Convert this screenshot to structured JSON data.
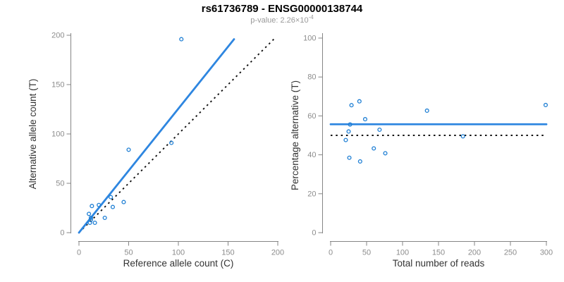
{
  "header": {
    "title": "rs61736789 - ENSG00000138744",
    "subtitle_base": "p-value: 2.26×10",
    "subtitle_exponent": "-4"
  },
  "colors": {
    "point": "#1f7fd4",
    "fit_line": "#2e86e0",
    "reference_line": "#111111",
    "axis": "#858585",
    "tick_label": "#8c8c8c",
    "axis_title": "#333333",
    "title": "#000000",
    "subtitle": "#999999"
  },
  "chart_data": [
    {
      "id": "allele-counts",
      "type": "scatter",
      "xlabel": "Reference allele count (C)",
      "ylabel": "Alternative allele count (T)",
      "xlim": [
        0,
        200
      ],
      "ylim": [
        0,
        200
      ],
      "xticks": [
        0,
        50,
        100,
        150,
        200
      ],
      "yticks": [
        0,
        50,
        100,
        150,
        200
      ],
      "grid": false,
      "points": [
        [
          10,
          19
        ],
        [
          12,
          15
        ],
        [
          12,
          13
        ],
        [
          11,
          10
        ],
        [
          13,
          27
        ],
        [
          16,
          10
        ],
        [
          20,
          28
        ],
        [
          26,
          15
        ],
        [
          32,
          36
        ],
        [
          34,
          26
        ],
        [
          45,
          31
        ],
        [
          50,
          84
        ],
        [
          93,
          91
        ],
        [
          103,
          196
        ]
      ],
      "fit_line": {
        "x1": 0,
        "y1": 0,
        "x2": 156,
        "y2": 196
      },
      "identity_line": {
        "x1": 0,
        "y1": 0,
        "x2": 196,
        "y2": 196
      }
    },
    {
      "id": "percentage-vs-depth",
      "type": "scatter",
      "xlabel": "Total number of reads",
      "ylabel": "Percentage alternative (T)",
      "xlim": [
        0,
        300
      ],
      "ylim": [
        0,
        100
      ],
      "xticks": [
        0,
        50,
        100,
        150,
        200,
        250,
        300
      ],
      "yticks": [
        0,
        20,
        40,
        60,
        80,
        100
      ],
      "grid": false,
      "points": [
        [
          29,
          65.5
        ],
        [
          27,
          55.6
        ],
        [
          25,
          52.0
        ],
        [
          21,
          47.6
        ],
        [
          40,
          67.5
        ],
        [
          26,
          38.5
        ],
        [
          48,
          58.3
        ],
        [
          41,
          36.6
        ],
        [
          68,
          52.9
        ],
        [
          60,
          43.3
        ],
        [
          76,
          40.8
        ],
        [
          134,
          62.7
        ],
        [
          184,
          49.5
        ],
        [
          299,
          65.6
        ]
      ],
      "mean_line": {
        "y": 55.7
      },
      "reference_line": {
        "y": 50
      }
    }
  ]
}
